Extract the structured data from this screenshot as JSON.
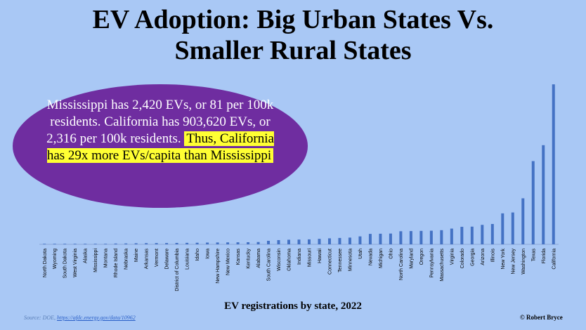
{
  "title_line1": "EV Adoption: Big Urban States Vs.",
  "title_line2": "Smaller Rural States",
  "callout": {
    "part1": "Mississippi has 2,420 EVs, or 81 per 100k residents. California has 903,620 EVs, or 2,316 per 100k residents.",
    "highlight": "Thus, California has 29x more EVs/capita than Mississippi"
  },
  "source_label": "Source: DOE,",
  "source_link": "https://afdc.energy.gov/data/10962",
  "credit": "© Robert Bryce",
  "colors": {
    "background": "#a9c8f5",
    "bar": "#4472c4",
    "callout_bg": "#6f2da0",
    "highlight": "#ffff33"
  },
  "chart_data": {
    "type": "bar",
    "xlabel": "EV registrations by state, 2022",
    "ylabel": "",
    "ylim": [
      0,
      920000
    ],
    "grid": false,
    "categories": [
      "North Dakota",
      "Wyoming",
      "South Dakota",
      "West Virginia",
      "Alaska",
      "Mississippi",
      "Montana",
      "Rhode Island",
      "Nebraska",
      "Maine",
      "Arkansas",
      "Vermont",
      "Delaware",
      "District of Columbia",
      "Louisiana",
      "Idaho",
      "Iowa",
      "New Hampshire",
      "New Mexico",
      "Kansas",
      "Kentucky",
      "Alabama",
      "South Carolina",
      "Wisconsin",
      "Oklahoma",
      "Indiana",
      "Missouri",
      "Hawaii",
      "Connecticut",
      "Tennessee",
      "Minnesota",
      "Utah",
      "Nevada",
      "Michigan",
      "Ohio",
      "North Carolina",
      "Maryland",
      "Oregon",
      "Pennsylvania",
      "Massachusetts",
      "Virginia",
      "Colorado",
      "Georgia",
      "Arizona",
      "Illinois",
      "New York",
      "New Jersey",
      "Washington",
      "Texas",
      "Florida",
      "California"
    ],
    "values": [
      1000,
      1200,
      1500,
      1700,
      2200,
      2420,
      2900,
      4500,
      5000,
      6000,
      6700,
      7000,
      7200,
      8000,
      8500,
      9000,
      10000,
      10500,
      11000,
      11500,
      12000,
      13000,
      20000,
      24000,
      26000,
      27000,
      28000,
      31000,
      34000,
      36000,
      38000,
      45000,
      59000,
      60000,
      61000,
      74000,
      75000,
      76000,
      77000,
      80000,
      89000,
      99000,
      100000,
      110000,
      115000,
      175000,
      180000,
      260000,
      470000,
      560000,
      903620
    ]
  }
}
